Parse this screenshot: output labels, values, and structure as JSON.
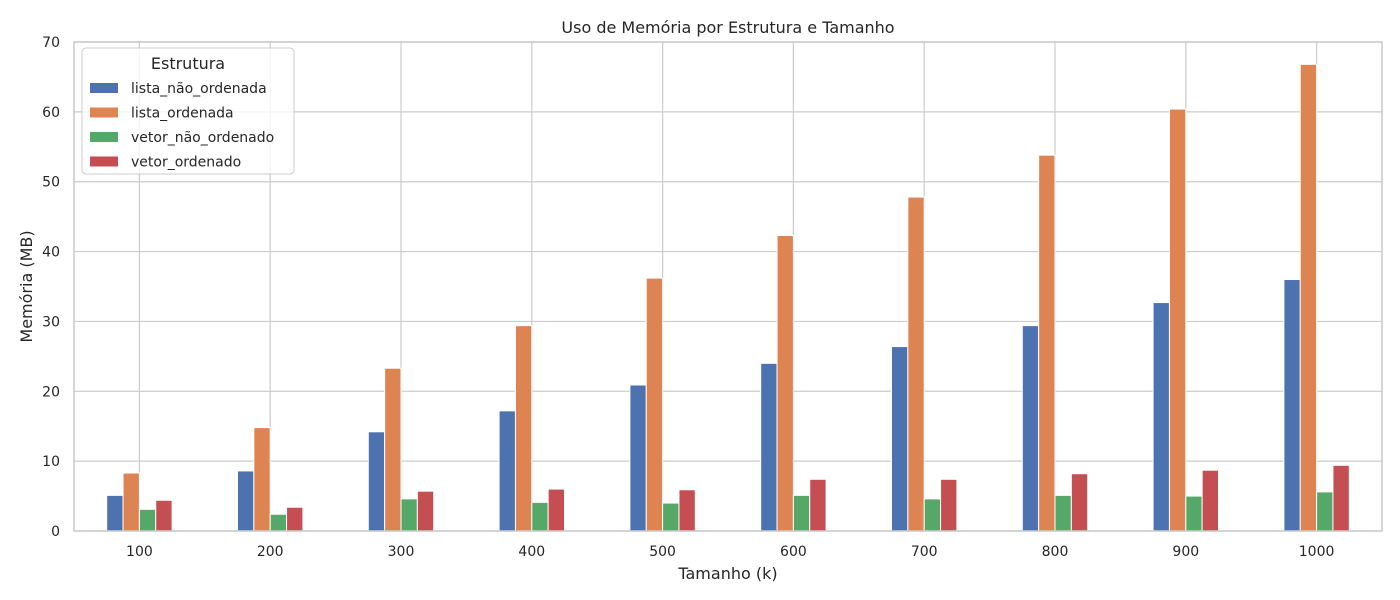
{
  "chart_data": {
    "type": "bar",
    "title": "Uso de Memória por Estrutura e Tamanho",
    "xlabel": "Tamanho (k)",
    "ylabel": "Memória (MB)",
    "ylim": [
      0,
      70
    ],
    "yticks": [
      0,
      10,
      20,
      30,
      40,
      50,
      60,
      70
    ],
    "grid": true,
    "legend": {
      "title": "Estrutura",
      "position": "top-left"
    },
    "categories": [
      "100",
      "200",
      "300",
      "400",
      "500",
      "600",
      "700",
      "800",
      "900",
      "1000"
    ],
    "series": [
      {
        "name": "lista_não_ordenada",
        "color": "#4c72b0",
        "values": [
          5.1,
          8.6,
          14.2,
          17.2,
          20.9,
          24.0,
          26.4,
          29.4,
          32.7,
          36.0
        ]
      },
      {
        "name": "lista_ordenada",
        "color": "#dd8452",
        "values": [
          8.3,
          14.8,
          23.3,
          29.4,
          36.2,
          42.3,
          47.8,
          53.8,
          60.4,
          66.8
        ]
      },
      {
        "name": "vetor_não_ordenado",
        "color": "#55a868",
        "values": [
          3.1,
          2.4,
          4.6,
          4.1,
          4.0,
          5.1,
          4.6,
          5.1,
          5.0,
          5.6
        ]
      },
      {
        "name": "vetor_ordenado",
        "color": "#c44e52",
        "values": [
          4.4,
          3.4,
          5.7,
          6.0,
          5.9,
          7.4,
          7.4,
          8.2,
          8.7,
          9.4
        ]
      }
    ]
  }
}
